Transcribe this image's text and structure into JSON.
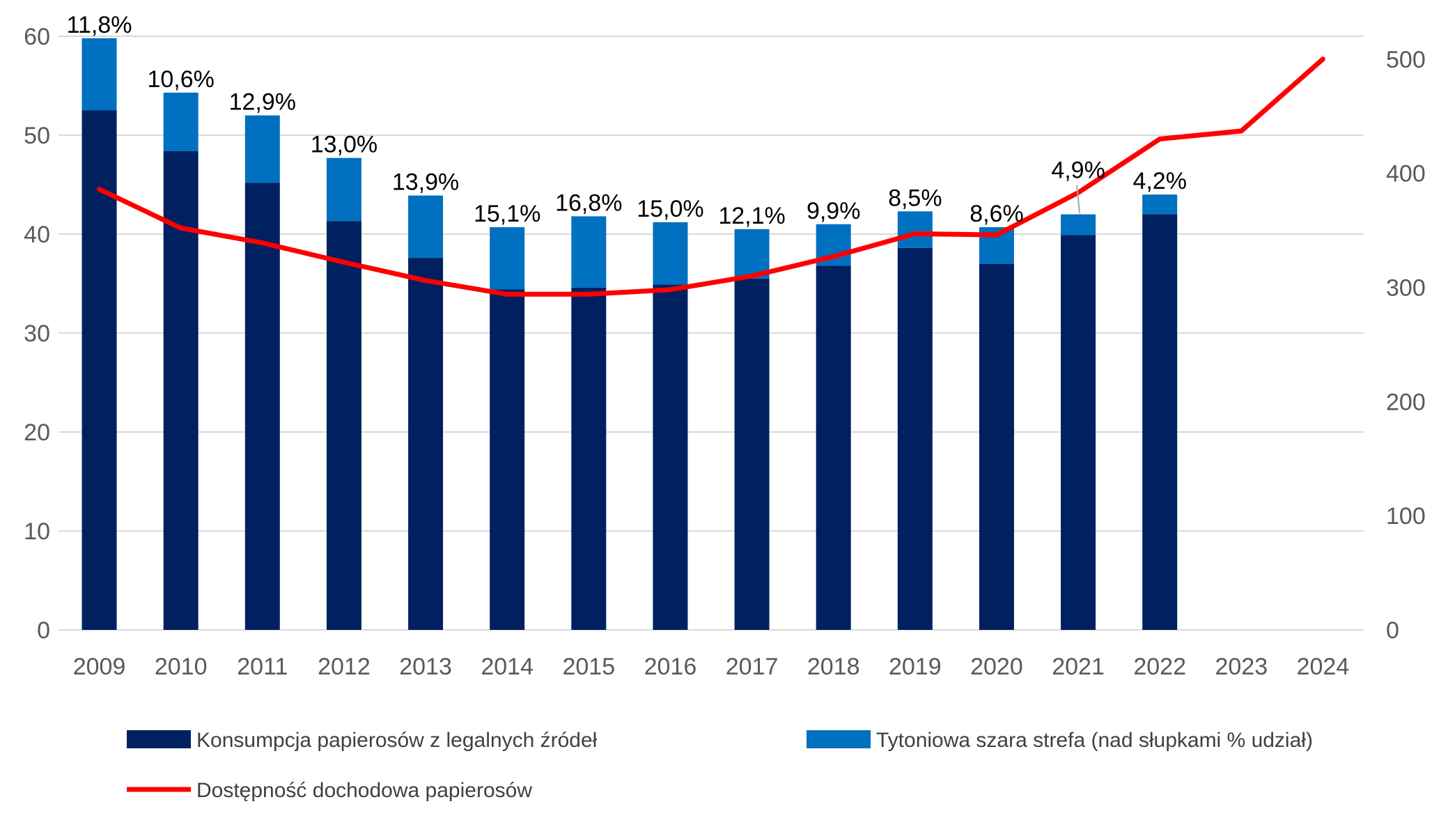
{
  "chart_data": {
    "type": "bar",
    "categories": [
      "2009",
      "2010",
      "2011",
      "2012",
      "2013",
      "2014",
      "2015",
      "2016",
      "2017",
      "2018",
      "2019",
      "2020",
      "2021",
      "2022",
      "2023",
      "2024"
    ],
    "y_left": {
      "ylim": [
        0,
        60
      ],
      "ticks": [
        "0",
        "10",
        "20",
        "30",
        "40",
        "50",
        "60"
      ]
    },
    "y_right": {
      "ylim": [
        0,
        520
      ],
      "ticks": [
        "0",
        "100",
        "200",
        "300",
        "400",
        "500"
      ]
    },
    "grid": true,
    "legend_position": "bottom",
    "series": [
      {
        "name": "Konsumpcja papierosów z legalnych źródeł",
        "type": "bar-stacked",
        "axis": "left",
        "color": "#002060",
        "values": [
          52.5,
          48.4,
          45.2,
          41.3,
          37.6,
          34.4,
          34.6,
          34.9,
          35.5,
          36.8,
          38.6,
          37.0,
          39.9,
          42.0,
          null,
          null
        ]
      },
      {
        "name": "Tytoniowa szara strefa (nad słupkami % udział)",
        "type": "bar-stacked",
        "axis": "left",
        "color": "#0070C0",
        "values": [
          7.3,
          5.9,
          6.8,
          6.4,
          6.3,
          6.3,
          7.2,
          6.3,
          5.0,
          4.2,
          3.7,
          3.7,
          2.1,
          2.0,
          null,
          null
        ],
        "data_labels": [
          "11,8%",
          "10,6%",
          "12,9%",
          "13,0%",
          "13,9%",
          "15,1%",
          "16,8%",
          "15,0%",
          "12,1%",
          "9,9%",
          "8,5%",
          "8,6%",
          "4,9%",
          "4,2%",
          "",
          ""
        ]
      },
      {
        "name": "Dostępność dochodowa papierosów",
        "type": "line",
        "axis": "right",
        "color": "#FF0000",
        "values": [
          386,
          352,
          339,
          322,
          306,
          294,
          294,
          298,
          310,
          327,
          347,
          346,
          383,
          430,
          437,
          500
        ]
      }
    ]
  }
}
